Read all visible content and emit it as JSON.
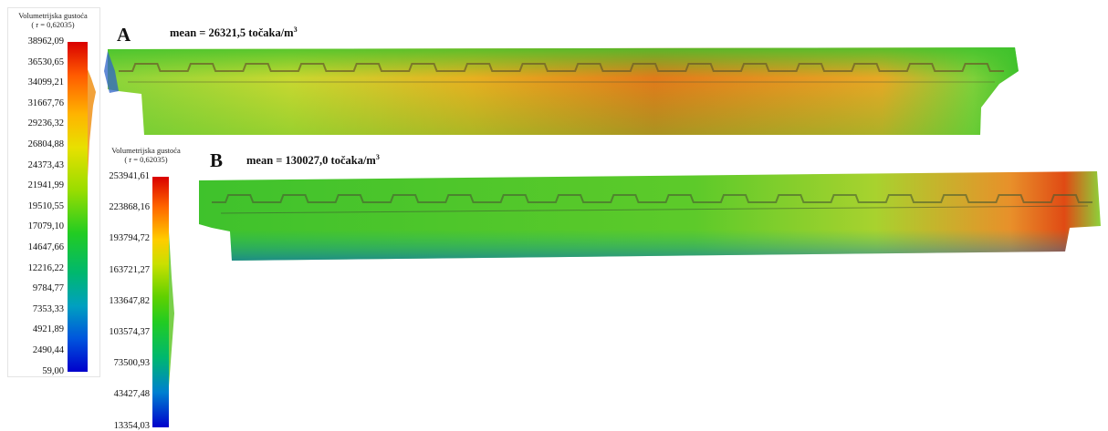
{
  "legend_a": {
    "title": "Volumetrijska gustoća",
    "subtitle": "( r = 0,62035)",
    "ticks": [
      "38962,09",
      "36530,65",
      "34099,21",
      "31667,76",
      "29236,32",
      "26804,88",
      "24373,43",
      "21941,99",
      "19510,55",
      "17079,10",
      "14647,66",
      "12216,22",
      "9784,77",
      "7353,33",
      "4921,89",
      "2490,44",
      "59,00"
    ]
  },
  "legend_b": {
    "title": "Volumetrijska gustoća",
    "subtitle": "( r = 0,62035)",
    "ticks": [
      "253941,61",
      "223868,16",
      "193794,72",
      "163721,27",
      "133647,82",
      "103574,37",
      "73500,93",
      "43427,48",
      "13354,03"
    ]
  },
  "panel_a": {
    "letter": "A",
    "mean_text": "mean = 26321,5 točaka/m",
    "mean_unit_sup": "3"
  },
  "panel_b": {
    "letter": "B",
    "mean_text": "mean = 130027,0 točaka/m",
    "mean_unit_sup": "3"
  },
  "colors": {
    "scale": [
      "#d90000",
      "#ff6600",
      "#ffcc00",
      "#99dd00",
      "#22cc22",
      "#00bb88",
      "#0066dd",
      "#0000cc"
    ],
    "beam_green": "#3fc22c",
    "beam_red": "#e04a14"
  }
}
